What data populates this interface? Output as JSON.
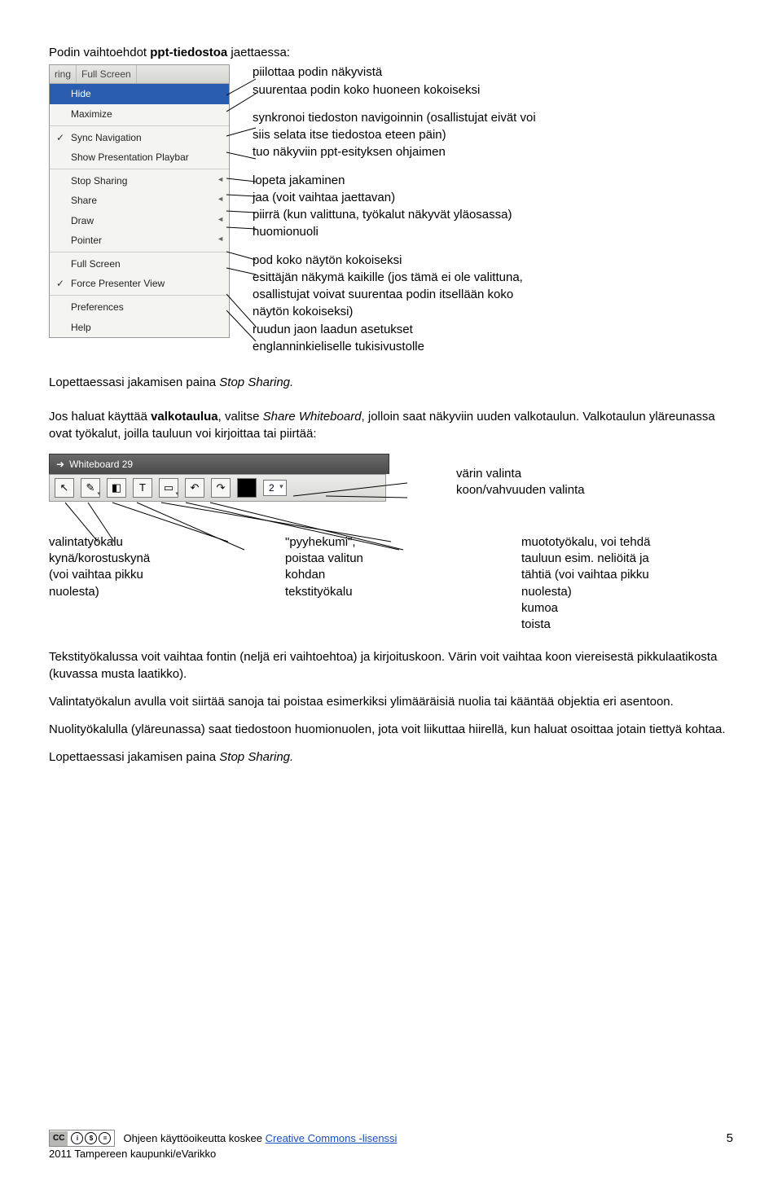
{
  "intro": {
    "prefix": "Podin vaihtoehdot ",
    "bold": "ppt-tiedostoa",
    "suffix": " jaettaessa:"
  },
  "menu": {
    "tabs": [
      "ring",
      "Full Screen"
    ],
    "items": [
      {
        "label": "Hide",
        "hl": true
      },
      {
        "label": "Maximize"
      },
      {
        "sep": true
      },
      {
        "label": "Sync Navigation",
        "check": true
      },
      {
        "label": "Show Presentation Playbar"
      },
      {
        "sep": true
      },
      {
        "label": "Stop Sharing",
        "arrow": true
      },
      {
        "label": "Share",
        "arrow": true
      },
      {
        "label": "Draw",
        "arrow": true
      },
      {
        "label": "Pointer",
        "arrow": true
      },
      {
        "sep": true
      },
      {
        "label": "Full Screen"
      },
      {
        "label": "Force Presenter View",
        "check": true
      },
      {
        "sep": true
      },
      {
        "label": "Preferences"
      },
      {
        "label": "Help"
      }
    ]
  },
  "desc": {
    "g1": [
      "piilottaa podin näkyvistä",
      "suurentaa podin koko huoneen kokoiseksi"
    ],
    "g2": [
      "synkronoi tiedoston navigoinnin (osallistujat eivät voi",
      "siis selata itse tiedostoa eteen päin)",
      "tuo näkyviin ppt-esityksen ohjaimen"
    ],
    "g3": [
      "lopeta jakaminen",
      "jaa (voit vaihtaa jaettavan)",
      "piirrä (kun valittuna, työkalut näkyvät yläosassa)",
      "huomionuoli"
    ],
    "g4": [
      "pod koko näytön kokoiseksi",
      "esittäjän näkymä kaikille (jos tämä ei ole valittuna,",
      "osallistujat voivat suurentaa podin itsellään koko",
      "näytön kokoiseksi)",
      "ruudun jaon laadun asetukset",
      "englanninkieliselle tukisivustolle"
    ]
  },
  "stop_sharing": {
    "prefix": "Lopettaessasi jakamisen paina ",
    "italic": "Stop Sharing."
  },
  "whiteboard_para": {
    "p1": "Jos haluat käyttää ",
    "b1": "valkotaulua",
    "p2": ", valitse ",
    "i1": "Share Whiteboard",
    "p3": ", jolloin saat näkyviin uuden valkotaulun. Valkotaulun yläreunassa ovat työkalut, joilla tauluun voi kirjoittaa tai piirtää:"
  },
  "wb_title": "Whiteboard 29",
  "wb_size": "2",
  "toolbar_right": [
    "värin valinta",
    "koon/vahvuuden valinta"
  ],
  "cols": {
    "c1": "valintatyökalu\nkynä/korostuskynä\n(voi vaihtaa pikku\nnuolesta)",
    "c2": "\"pyyhekumi\",\npoistaa valitun\nkohdan\ntekstityökalu",
    "c3": "muototyökalu, voi tehdä\ntauluun esim. neliöitä ja\ntähtiä (voi vaihtaa pikku\nnuolesta)\nkumoa\ntoista"
  },
  "body_paras": [
    "Tekstityökalussa voit vaihtaa fontin (neljä eri vaihtoehtoa) ja kirjoituskoon. Värin voit vaihtaa koon viereisestä pikkulaatikosta (kuvassa musta laatikko).",
    "Valintatyökalun avulla voit siirtää sanoja tai poistaa esimerkiksi ylimääräisiä nuolia tai kääntää objektia eri asentoon.",
    "Nuolityökalulla (yläreunassa) saat tiedostoon huomionuolen, jota voit liikuttaa hiirellä, kun haluat osoittaa jotain tiettyä kohtaa."
  ],
  "stop_sharing2": {
    "prefix": "Lopettaessasi jakamisen paina ",
    "italic": "Stop Sharing."
  },
  "footer": {
    "text_prefix": "Ohjeen käyttöoikeutta koskee ",
    "link": "Creative Commons -lisenssi",
    "line2": "2011 Tampereen kaupunki/eVarikko",
    "page": "5"
  }
}
